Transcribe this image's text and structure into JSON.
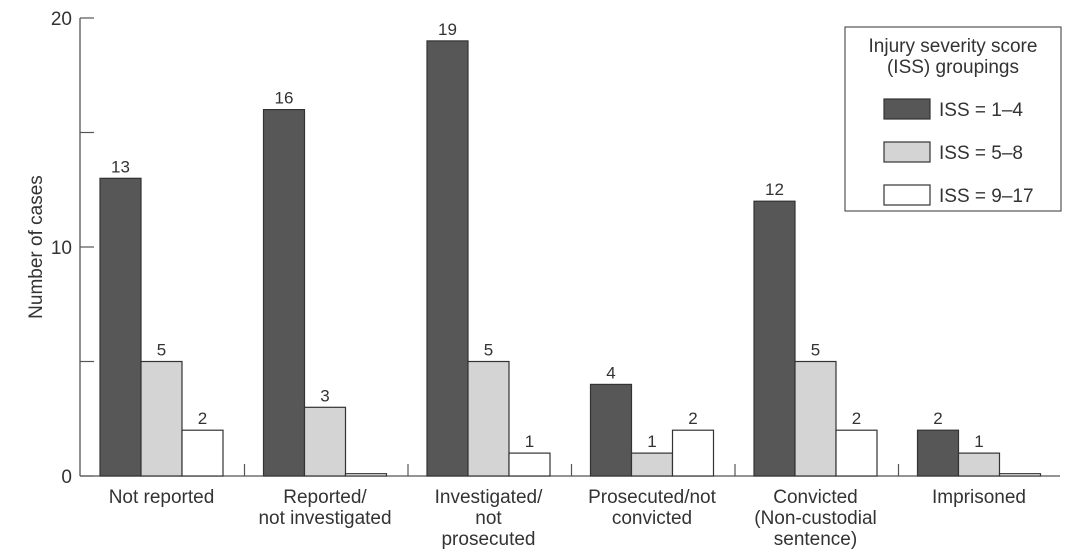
{
  "chart_data": {
    "type": "bar",
    "title": "",
    "xlabel": "",
    "ylabel": "Number of cases",
    "ylim": [
      0,
      20
    ],
    "yticks": [
      0,
      10,
      20
    ],
    "grid": false,
    "legend_position": "top-right",
    "legend_title": [
      "Injury severity score",
      "(ISS) groupings"
    ],
    "categories": [
      [
        "Not reported"
      ],
      [
        "Reported/",
        "not investigated"
      ],
      [
        "Investigated/",
        "not",
        "prosecuted"
      ],
      [
        "Prosecuted/not",
        "convicted"
      ],
      [
        "Convicted",
        "(Non-custodial",
        "sentence)"
      ],
      [
        "Imprisoned"
      ]
    ],
    "series": [
      {
        "name": "ISS = 1–4",
        "color": "#575757",
        "values": [
          13,
          16,
          19,
          4,
          12,
          2
        ],
        "labels": [
          "13",
          "16",
          "19",
          "4",
          "12",
          "2"
        ]
      },
      {
        "name": "ISS = 5–8",
        "color": "#d4d4d4",
        "values": [
          5,
          3,
          5,
          1,
          5,
          1
        ],
        "labels": [
          "5",
          "3",
          "5",
          "1",
          "5",
          "1"
        ]
      },
      {
        "name": "ISS = 9–17",
        "color": "#ffffff",
        "values": [
          2,
          0.1,
          1,
          2,
          2,
          0.1
        ],
        "labels": [
          "2",
          "",
          "1",
          "2",
          "2",
          ""
        ]
      }
    ]
  }
}
